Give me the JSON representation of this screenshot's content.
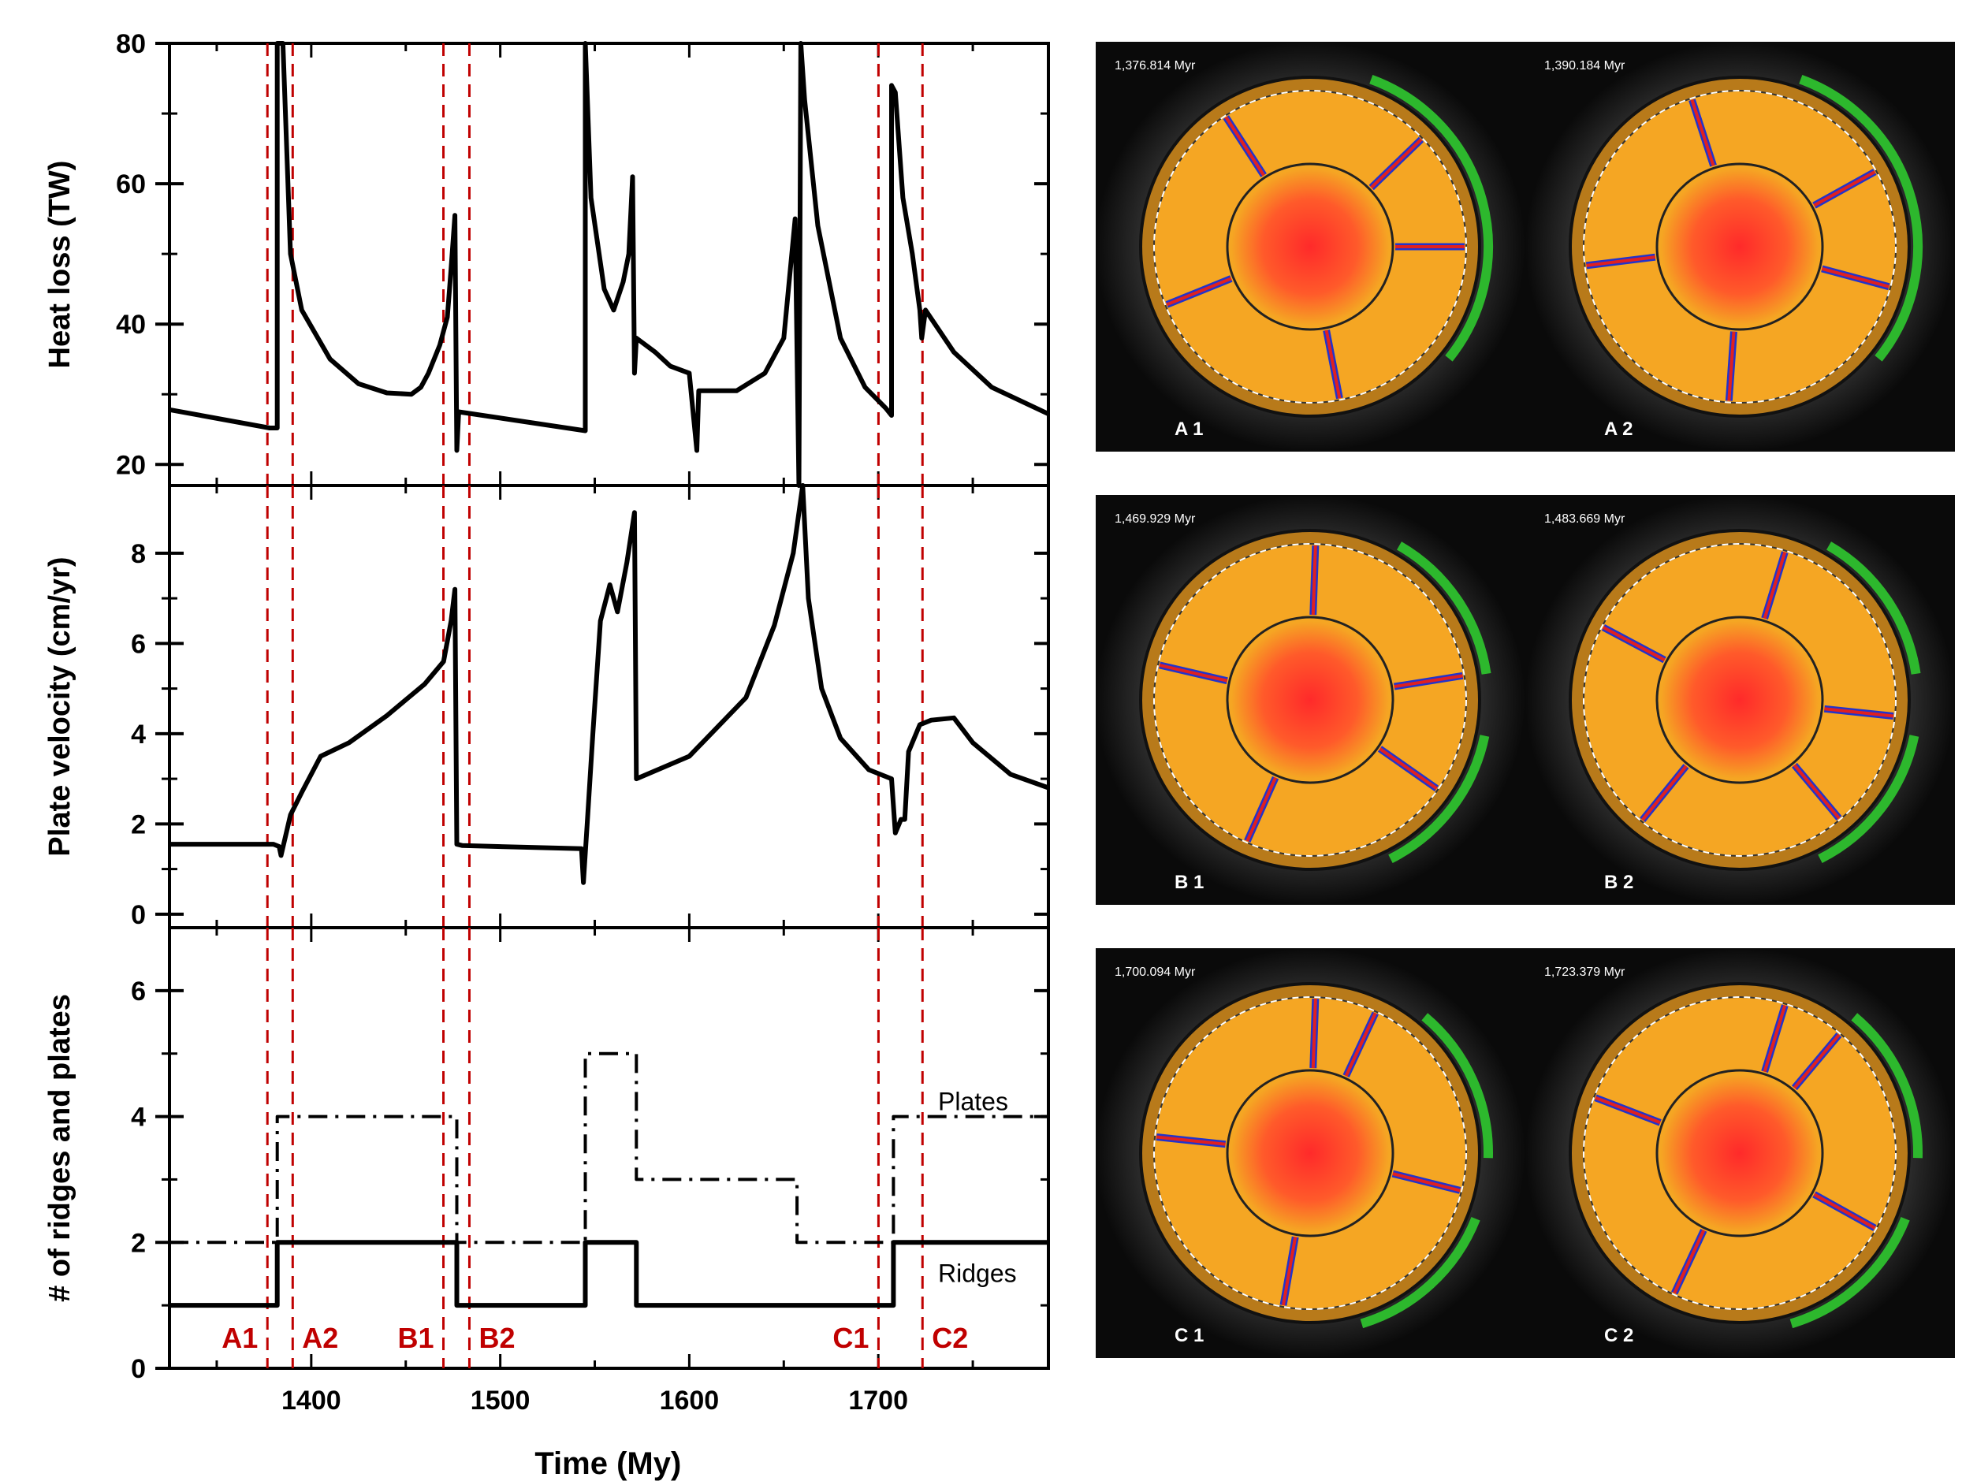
{
  "chart_data": [
    {
      "type": "line",
      "ylabel": "Heat loss (TW)",
      "xlim": [
        1325,
        1790
      ],
      "ylim": [
        17,
        80
      ],
      "yticks": [
        20,
        40,
        60,
        80
      ],
      "series": [
        {
          "values": [
            [
              1325,
              27.8
            ],
            [
              1378,
              25.2
            ],
            [
              1382,
              25.2
            ],
            [
              1382,
              80
            ],
            [
              1385,
              80
            ],
            [
              1389,
              50
            ],
            [
              1395,
              42
            ],
            [
              1410,
              35
            ],
            [
              1425,
              31.5
            ],
            [
              1440,
              30.2
            ],
            [
              1453,
              30
            ],
            [
              1458,
              31
            ],
            [
              1462,
              33
            ],
            [
              1468,
              37
            ],
            [
              1472,
              41
            ],
            [
              1474,
              48
            ],
            [
              1476,
              55.5
            ],
            [
              1477,
              22
            ],
            [
              1478,
              27.5
            ],
            [
              1545,
              24.8
            ],
            [
              1545,
              80
            ],
            [
              1548,
              58
            ],
            [
              1555,
              45
            ],
            [
              1560,
              42
            ],
            [
              1565,
              46
            ],
            [
              1568,
              50
            ],
            [
              1570,
              61
            ],
            [
              1571,
              33
            ],
            [
              1572,
              38
            ],
            [
              1582,
              36
            ],
            [
              1590,
              34
            ],
            [
              1600,
              33
            ],
            [
              1604,
              22
            ],
            [
              1605,
              30.5
            ],
            [
              1625,
              30.5
            ],
            [
              1640,
              33
            ],
            [
              1650,
              38
            ],
            [
              1656,
              55
            ],
            [
              1658,
              17
            ],
            [
              1659,
              80
            ],
            [
              1661,
              72
            ],
            [
              1668,
              54
            ],
            [
              1680,
              38
            ],
            [
              1693,
              31
            ],
            [
              1704,
              28
            ],
            [
              1707,
              27
            ],
            [
              1707,
              74
            ],
            [
              1709,
              73
            ],
            [
              1713,
              58
            ],
            [
              1718,
              50
            ],
            [
              1722,
              42
            ],
            [
              1723,
              38
            ],
            [
              1725,
              42
            ],
            [
              1740,
              36
            ],
            [
              1760,
              31
            ],
            [
              1790,
              27.2
            ]
          ]
        }
      ]
    },
    {
      "type": "line",
      "ylabel": "Plate velocity (cm/yr)",
      "xlim": [
        1325,
        1790
      ],
      "ylim": [
        -0.3,
        9.5
      ],
      "yticks": [
        0,
        2,
        4,
        6,
        8
      ],
      "series": [
        {
          "values": [
            [
              1325,
              1.55
            ],
            [
              1379,
              1.55
            ],
            [
              1380,
              1.55
            ],
            [
              1383,
              1.5
            ],
            [
              1384,
              1.3
            ],
            [
              1389,
              2.2
            ],
            [
              1395,
              2.7
            ],
            [
              1405,
              3.5
            ],
            [
              1420,
              3.8
            ],
            [
              1440,
              4.4
            ],
            [
              1460,
              5.1
            ],
            [
              1470,
              5.6
            ],
            [
              1474,
              6.5
            ],
            [
              1476,
              7.2
            ],
            [
              1477,
              1.55
            ],
            [
              1480,
              1.52
            ],
            [
              1543,
              1.45
            ],
            [
              1544,
              0.7
            ],
            [
              1546,
              2
            ],
            [
              1549,
              4
            ],
            [
              1553,
              6.5
            ],
            [
              1558,
              7.3
            ],
            [
              1562,
              6.7
            ],
            [
              1567,
              7.8
            ],
            [
              1571,
              8.9
            ],
            [
              1572,
              3.0
            ],
            [
              1600,
              3.5
            ],
            [
              1630,
              4.8
            ],
            [
              1645,
              6.4
            ],
            [
              1655,
              8.0
            ],
            [
              1660,
              9.5
            ],
            [
              1663,
              7.0
            ],
            [
              1670,
              5.0
            ],
            [
              1680,
              3.9
            ],
            [
              1695,
              3.2
            ],
            [
              1707,
              3.0
            ],
            [
              1709,
              1.8
            ],
            [
              1712,
              2.1
            ],
            [
              1714,
              2.1
            ],
            [
              1716,
              3.6
            ],
            [
              1722,
              4.2
            ],
            [
              1728,
              4.3
            ],
            [
              1740,
              4.35
            ],
            [
              1750,
              3.8
            ],
            [
              1770,
              3.1
            ],
            [
              1790,
              2.8
            ]
          ]
        }
      ]
    },
    {
      "type": "line",
      "ylabel": "# of ridges and plates",
      "xlabel": "Time (My)",
      "xlim": [
        1325,
        1790
      ],
      "ylim": [
        0,
        7
      ],
      "yticks": [
        0,
        2,
        4,
        6
      ],
      "xticks": [
        1400,
        1500,
        1600,
        1700
      ],
      "series": [
        {
          "name": "Ridges",
          "style": "solid",
          "values": [
            [
              1325,
              1
            ],
            [
              1382,
              1
            ],
            [
              1382,
              2
            ],
            [
              1477,
              2
            ],
            [
              1477,
              1
            ],
            [
              1545,
              1
            ],
            [
              1545,
              2
            ],
            [
              1572,
              2
            ],
            [
              1572,
              1
            ],
            [
              1708,
              1
            ],
            [
              1708,
              2
            ],
            [
              1790,
              2
            ]
          ]
        },
        {
          "name": "Plates",
          "style": "dashdot",
          "values": [
            [
              1325,
              2
            ],
            [
              1382,
              2
            ],
            [
              1382,
              4
            ],
            [
              1477,
              4
            ],
            [
              1477,
              2
            ],
            [
              1545,
              2
            ],
            [
              1545,
              5
            ],
            [
              1572,
              5
            ],
            [
              1572,
              3
            ],
            [
              1657,
              3
            ],
            [
              1657,
              2
            ],
            [
              1708,
              2
            ],
            [
              1708,
              4
            ],
            [
              1790,
              4
            ]
          ]
        }
      ]
    }
  ],
  "markers": [
    {
      "label": "A1",
      "x": 1376.814
    },
    {
      "label": "A2",
      "x": 1390.184
    },
    {
      "label": "B1",
      "x": 1469.929
    },
    {
      "label": "B2",
      "x": 1483.669
    },
    {
      "label": "C1",
      "x": 1700.094
    },
    {
      "label": "C2",
      "x": 1723.379
    }
  ],
  "snapshots": [
    {
      "time": "1,376.814 Myr",
      "label": "A 1"
    },
    {
      "time": "1,390.184 Myr",
      "label": "A 2"
    },
    {
      "time": "1,469.929 Myr",
      "label": "B 1"
    },
    {
      "time": "1,483.669 Myr",
      "label": "B 2"
    },
    {
      "time": "1,700.094 Myr",
      "label": "C 1"
    },
    {
      "time": "1,723.379 Myr",
      "label": "C 2"
    }
  ],
  "colors": {
    "marker": "#c00000",
    "line": "#000000",
    "core": "#ff3b2a",
    "mantle": "#f5a623",
    "plate_band": "#2db82d",
    "ridge": "#e02020",
    "subduction": "#2233cc"
  }
}
